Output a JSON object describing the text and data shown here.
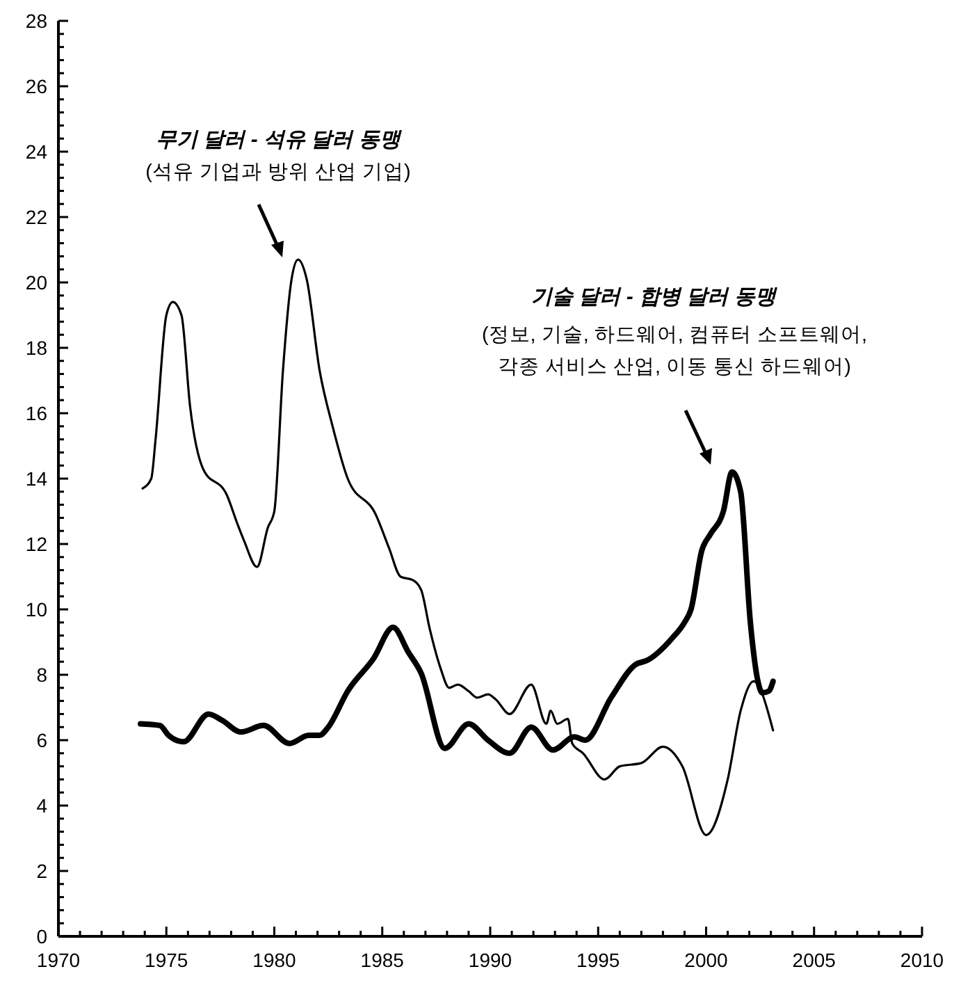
{
  "chart_data": {
    "type": "line",
    "line_style": "solid",
    "marker": "none",
    "grid": false,
    "xlim": [
      1970,
      2010
    ],
    "ylim": [
      0,
      28
    ],
    "xticks": [
      1970,
      {
        "value": 1971,
        "label": null
      },
      {
        "value": 1972,
        "label": null
      },
      {
        "value": 1973,
        "label": null
      },
      {
        "value": 1974,
        "label": null
      },
      1975,
      {
        "value": 1976,
        "label": null
      },
      {
        "value": 1977,
        "label": null
      },
      {
        "value": 1978,
        "label": null
      },
      {
        "value": 1979,
        "label": null
      },
      1980,
      {
        "value": 1981,
        "label": null
      },
      {
        "value": 1982,
        "label": null
      },
      {
        "value": 1983,
        "label": null
      },
      {
        "value": 1984,
        "label": null
      },
      1985,
      {
        "value": 1986,
        "label": null
      },
      {
        "value": 1987,
        "label": null
      },
      {
        "value": 1988,
        "label": null
      },
      {
        "value": 1989,
        "label": null
      },
      1990,
      {
        "value": 1991,
        "label": null
      },
      {
        "value": 1992,
        "label": null
      },
      {
        "value": 1993,
        "label": null
      },
      {
        "value": 1994,
        "label": null
      },
      1995,
      {
        "value": 1996,
        "label": null
      },
      {
        "value": 1997,
        "label": null
      },
      {
        "value": 1998,
        "label": null
      },
      {
        "value": 1999,
        "label": null
      },
      2000,
      {
        "value": 2001,
        "label": null
      },
      {
        "value": 2002,
        "label": null
      },
      {
        "value": 2003,
        "label": null
      },
      {
        "value": 2004,
        "label": null
      },
      2005,
      {
        "value": 2006,
        "label": null
      },
      {
        "value": 2007,
        "label": null
      },
      {
        "value": 2008,
        "label": null
      },
      {
        "value": 2009,
        "label": null
      },
      2010
    ],
    "yticks": [
      0,
      {
        "value": 0.4,
        "label": null
      },
      {
        "value": 0.8,
        "label": null
      },
      {
        "value": 1.2,
        "label": null
      },
      {
        "value": 1.6,
        "label": null
      },
      2,
      {
        "value": 2.4,
        "label": null
      },
      {
        "value": 2.8,
        "label": null
      },
      {
        "value": 3.2,
        "label": null
      },
      {
        "value": 3.6,
        "label": null
      },
      4,
      {
        "value": 4.4,
        "label": null
      },
      {
        "value": 4.8,
        "label": null
      },
      {
        "value": 5.2,
        "label": null
      },
      {
        "value": 5.6,
        "label": null
      },
      6,
      {
        "value": 6.4,
        "label": null
      },
      {
        "value": 6.8,
        "label": null
      },
      {
        "value": 7.2,
        "label": null
      },
      {
        "value": 7.6,
        "label": null
      },
      8,
      {
        "value": 8.4,
        "label": null
      },
      {
        "value": 8.8,
        "label": null
      },
      {
        "value": 9.2,
        "label": null
      },
      {
        "value": 9.6,
        "label": null
      },
      10,
      {
        "value": 10.4,
        "label": null
      },
      {
        "value": 10.8,
        "label": null
      },
      {
        "value": 11.2,
        "label": null
      },
      {
        "value": 11.6,
        "label": null
      },
      12,
      {
        "value": 12.4,
        "label": null
      },
      {
        "value": 12.8,
        "label": null
      },
      {
        "value": 13.2,
        "label": null
      },
      {
        "value": 13.6,
        "label": null
      },
      14,
      {
        "value": 14.4,
        "label": null
      },
      {
        "value": 14.8,
        "label": null
      },
      {
        "value": 15.2,
        "label": null
      },
      {
        "value": 15.6,
        "label": null
      },
      16,
      {
        "value": 16.4,
        "label": null
      },
      {
        "value": 16.8,
        "label": null
      },
      {
        "value": 17.2,
        "label": null
      },
      {
        "value": 17.6,
        "label": null
      },
      18,
      {
        "value": 18.4,
        "label": null
      },
      {
        "value": 18.8,
        "label": null
      },
      {
        "value": 19.2,
        "label": null
      },
      {
        "value": 19.6,
        "label": null
      },
      20,
      {
        "value": 20.4,
        "label": null
      },
      {
        "value": 20.8,
        "label": null
      },
      {
        "value": 21.2,
        "label": null
      },
      {
        "value": 21.6,
        "label": null
      },
      22,
      {
        "value": 22.4,
        "label": null
      },
      {
        "value": 22.8,
        "label": null
      },
      {
        "value": 23.2,
        "label": null
      },
      {
        "value": 23.6,
        "label": null
      },
      24,
      {
        "value": 24.4,
        "label": null
      },
      {
        "value": 24.8,
        "label": null
      },
      {
        "value": 25.2,
        "label": null
      },
      {
        "value": 25.6,
        "label": null
      },
      26,
      {
        "value": 26.4,
        "label": null
      },
      {
        "value": 26.8,
        "label": null
      },
      {
        "value": 27.2,
        "label": null
      },
      {
        "value": 27.6,
        "label": null
      },
      28
    ],
    "annotations": [
      "무기 달러 - 석유 달러 동맹",
      "(석유 기업과 방위 산업 기업)",
      "기술 달러 - 합병 달러 동맹",
      "(정보, 기술, 하드웨어, 컴퓨터 소프트웨어,",
      "각종 서비스 산업, 이동 통신 하드웨어)"
    ],
    "series": [
      {
        "color": "#000000",
        "x": [
          1973.9,
          1974.3,
          1974.5,
          1975.0,
          1975.3,
          1975.7,
          1976.1,
          1976.7,
          1977.8,
          1978.3,
          1978.6,
          1979.2,
          1979.7,
          1980.0,
          1980.4,
          1980.8,
          1981.1,
          1981.5,
          1982.1,
          1982.7,
          1983.4,
          1984.7,
          1985.3,
          1985.85,
          1986.4,
          1986.8,
          1987.2,
          1987.7,
          1988.1,
          1988.5,
          1989.0,
          1989.4,
          1989.9,
          1990.25,
          1990.9,
          1991.9,
          1992.6,
          1992.8,
          1993.1,
          1993.6,
          1993.8,
          1994.3,
          1995.3,
          1996.0,
          1997.0,
          1998.0,
          1998.9,
          2000.0,
          2001.0,
          2001.6,
          2002.2,
          2003.1
        ],
        "values": [
          13.7,
          14.0,
          15.2,
          19.0,
          19.4,
          19.0,
          16.2,
          14.3,
          13.5,
          12.6,
          12.1,
          11.3,
          12.5,
          13.0,
          17.3,
          20.1,
          20.7,
          20.1,
          17.3,
          15.6,
          14.0,
          12.9,
          11.9,
          11.0,
          10.9,
          10.6,
          9.4,
          8.2,
          7.6,
          7.7,
          7.5,
          7.3,
          7.4,
          7.25,
          6.8,
          7.7,
          6.5,
          6.9,
          6.5,
          6.65,
          5.9,
          5.6,
          4.8,
          5.2,
          5.3,
          5.8,
          5.2,
          3.1,
          4.8,
          6.9,
          7.8,
          6.3
        ]
      },
      {
        "color": "#000000",
        "x": [
          1973.8,
          1974.7,
          1975.1,
          1975.8,
          1976.95,
          1977.6,
          1978.45,
          1979.5,
          1980.7,
          1981.6,
          1982.1,
          1982.5,
          1983.4,
          1984.6,
          1985.5,
          1986.2,
          1986.8,
          1987.9,
          1989.0,
          1989.9,
          1990.9,
          1991.9,
          1992.9,
          1993.9,
          1994.4,
          1995.6,
          1996.7,
          1997.3,
          1998.4,
          1999.0,
          1999.3,
          1999.8,
          2000.2,
          2000.8,
          2001.2,
          2001.6,
          2002.05,
          2002.4,
          2002.6,
          2002.9,
          2003.1
        ],
        "values": [
          6.5,
          6.45,
          6.15,
          5.95,
          6.8,
          6.6,
          6.25,
          6.45,
          5.9,
          6.15,
          6.15,
          6.4,
          7.5,
          8.5,
          9.45,
          8.7,
          8.05,
          5.75,
          6.5,
          6.0,
          5.6,
          6.4,
          5.7,
          6.1,
          6.0,
          7.3,
          8.3,
          8.45,
          9.1,
          9.6,
          10.0,
          11.8,
          12.3,
          13.0,
          14.2,
          13.6,
          9.6,
          7.8,
          7.45,
          7.5,
          7.8
        ]
      }
    ]
  }
}
